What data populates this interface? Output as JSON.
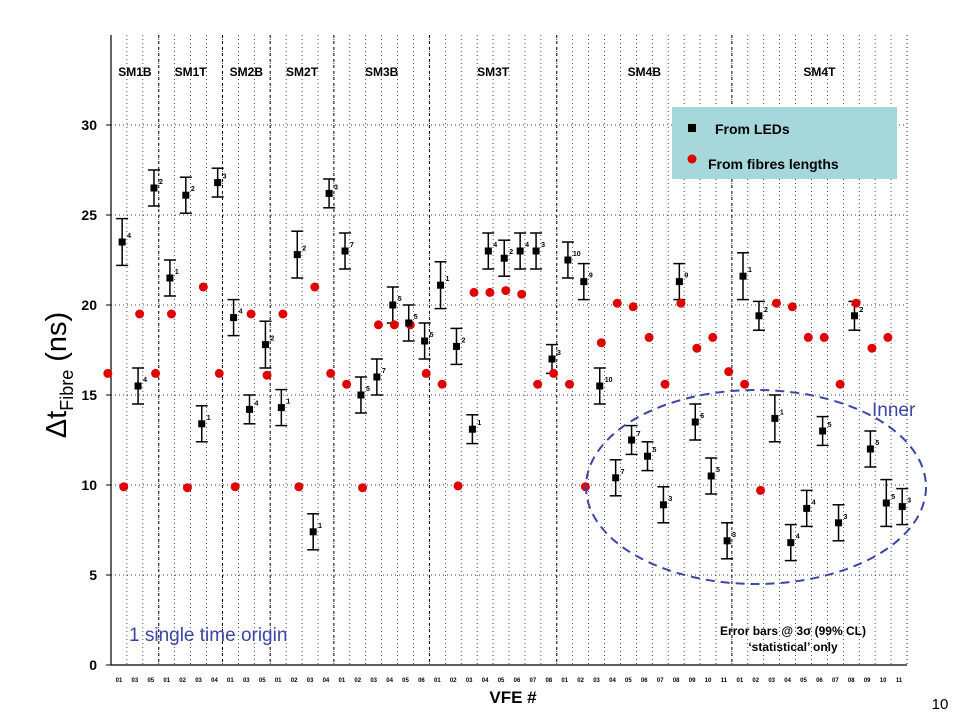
{
  "chart_data": {
    "type": "scatter",
    "ylabel": "Δt_Fibre (ns)",
    "ylabel_parts": {
      "delta": "Δ",
      "t": "t",
      "sub": "Fibre",
      "unit": "(ns)"
    },
    "xlabel": "VFE #",
    "ylim": [
      0,
      35
    ],
    "y_ticks": [
      0,
      5,
      10,
      15,
      20,
      25,
      30
    ],
    "grid": true,
    "page_number": "10",
    "supermodules": [
      "SM1B",
      "SM1T",
      "SM2B",
      "SM2T",
      "SM3B",
      "SM3T",
      "SM4B",
      "SM4T"
    ],
    "x_tick_labels": [
      "01",
      "03",
      "05",
      "01",
      "02",
      "03",
      "04",
      "01",
      "03",
      "05",
      "01",
      "02",
      "03",
      "04",
      "01",
      "02",
      "03",
      "04",
      "05",
      "06",
      "01",
      "02",
      "03",
      "04",
      "05",
      "06",
      "07",
      "08",
      "01",
      "02",
      "03",
      "04",
      "05",
      "06",
      "07",
      "08",
      "09",
      "10",
      "11",
      "01",
      "02",
      "03",
      "04",
      "05",
      "06",
      "07",
      "08",
      "09",
      "10",
      "11"
    ],
    "legend": {
      "position": "top-right",
      "items": [
        {
          "label": "From LEDs",
          "marker": "square",
          "color": "#000000"
        },
        {
          "label": "From fibres lengths",
          "marker": "circle",
          "color": "#e00000"
        }
      ]
    },
    "annotations": {
      "inner_label": "Inner",
      "origin_note": "1 single time origin",
      "error_note_line1": "Error bars @ 3σ (99% CL)",
      "error_note_line2": "‘statistical’ only"
    },
    "series": [
      {
        "name": "From LEDs",
        "marker": "square",
        "color": "#000000",
        "points": [
          {
            "x": 0.2,
            "y": 23.5,
            "err": 1.3,
            "label": "4"
          },
          {
            "x": 1.2,
            "y": 15.5,
            "err": 1.0,
            "label": "4"
          },
          {
            "x": 2.2,
            "y": 26.5,
            "err": 1.0,
            "label": "2"
          },
          {
            "x": 3.2,
            "y": 21.5,
            "err": 1.0,
            "label": "1"
          },
          {
            "x": 4.2,
            "y": 26.1,
            "err": 1.0,
            "label": "2"
          },
          {
            "x": 5.2,
            "y": 13.4,
            "err": 1.0,
            "label": "1"
          },
          {
            "x": 6.2,
            "y": 26.8,
            "err": 0.8,
            "label": "3"
          },
          {
            "x": 7.2,
            "y": 19.3,
            "err": 1.0,
            "label": "4"
          },
          {
            "x": 8.2,
            "y": 14.2,
            "err": 0.8,
            "label": "4"
          },
          {
            "x": 9.2,
            "y": 17.8,
            "err": 1.3,
            "label": "2"
          },
          {
            "x": 10.2,
            "y": 14.3,
            "err": 1.0,
            "label": "1"
          },
          {
            "x": 11.2,
            "y": 22.8,
            "err": 1.3,
            "label": "2"
          },
          {
            "x": 12.2,
            "y": 7.4,
            "err": 1.0,
            "label": "1"
          },
          {
            "x": 13.2,
            "y": 26.2,
            "err": 0.8,
            "label": "3"
          },
          {
            "x": 14.2,
            "y": 23.0,
            "err": 1.0,
            "label": "7"
          },
          {
            "x": 15.2,
            "y": 15.0,
            "err": 1.0,
            "label": "5"
          },
          {
            "x": 16.2,
            "y": 16.0,
            "err": 1.0,
            "label": "7"
          },
          {
            "x": 17.2,
            "y": 20.0,
            "err": 1.0,
            "label": "5"
          },
          {
            "x": 18.2,
            "y": 19.0,
            "err": 1.0,
            "label": "5"
          },
          {
            "x": 19.2,
            "y": 18.0,
            "err": 1.0,
            "label": "5"
          },
          {
            "x": 20.2,
            "y": 21.1,
            "err": 1.3,
            "label": "1"
          },
          {
            "x": 21.2,
            "y": 17.7,
            "err": 1.0,
            "label": "2"
          },
          {
            "x": 22.2,
            "y": 13.1,
            "err": 0.8,
            "label": "1"
          },
          {
            "x": 23.2,
            "y": 23.0,
            "err": 1.0,
            "label": "4"
          },
          {
            "x": 24.2,
            "y": 22.6,
            "err": 1.0,
            "label": "2"
          },
          {
            "x": 25.2,
            "y": 23.0,
            "err": 1.0,
            "label": "4"
          },
          {
            "x": 26.2,
            "y": 23.0,
            "err": 1.0,
            "label": "3"
          },
          {
            "x": 27.2,
            "y": 17.0,
            "err": 0.8,
            "label": "3"
          },
          {
            "x": 28.2,
            "y": 22.5,
            "err": 1.0,
            "label": "10"
          },
          {
            "x": 29.2,
            "y": 21.3,
            "err": 1.0,
            "label": "9"
          },
          {
            "x": 30.2,
            "y": 15.5,
            "err": 1.0,
            "label": "10"
          },
          {
            "x": 31.2,
            "y": 10.4,
            "err": 1.0,
            "label": "7"
          },
          {
            "x": 32.2,
            "y": 12.5,
            "err": 0.8,
            "label": "7"
          },
          {
            "x": 33.2,
            "y": 11.6,
            "err": 0.8,
            "label": "5"
          },
          {
            "x": 34.2,
            "y": 8.9,
            "err": 1.0,
            "label": "3"
          },
          {
            "x": 35.2,
            "y": 21.3,
            "err": 1.0,
            "label": "9"
          },
          {
            "x": 36.2,
            "y": 13.5,
            "err": 1.0,
            "label": "6"
          },
          {
            "x": 37.2,
            "y": 10.5,
            "err": 1.0,
            "label": "5"
          },
          {
            "x": 38.2,
            "y": 6.9,
            "err": 1.0,
            "label": "3"
          },
          {
            "x": 39.2,
            "y": 21.6,
            "err": 1.3,
            "label": "1"
          },
          {
            "x": 40.2,
            "y": 19.4,
            "err": 0.8,
            "label": "2"
          },
          {
            "x": 41.2,
            "y": 13.7,
            "err": 1.3,
            "label": "1"
          },
          {
            "x": 42.2,
            "y": 6.8,
            "err": 1.0,
            "label": "4"
          },
          {
            "x": 43.2,
            "y": 8.7,
            "err": 1.0,
            "label": "4"
          },
          {
            "x": 44.2,
            "y": 13.0,
            "err": 0.8,
            "label": "5"
          },
          {
            "x": 45.2,
            "y": 7.9,
            "err": 1.0,
            "label": "3"
          },
          {
            "x": 46.2,
            "y": 19.4,
            "err": 0.8,
            "label": "2"
          },
          {
            "x": 47.2,
            "y": 12.0,
            "err": 1.0,
            "label": "5"
          },
          {
            "x": 48.2,
            "y": 9.0,
            "err": 1.3,
            "label": "5"
          },
          {
            "x": 49.2,
            "y": 8.8,
            "err": 1.0,
            "label": "3"
          }
        ]
      },
      {
        "name": "From fibres lengths",
        "marker": "circle",
        "color": "#e00000",
        "points": [
          {
            "x": -0.7,
            "y": 16.2
          },
          {
            "x": 0.3,
            "y": 9.9
          },
          {
            "x": 1.3,
            "y": 19.5
          },
          {
            "x": 2.3,
            "y": 16.2
          },
          {
            "x": 3.3,
            "y": 19.5
          },
          {
            "x": 4.3,
            "y": 9.85
          },
          {
            "x": 5.3,
            "y": 21.0
          },
          {
            "x": 6.3,
            "y": 16.2
          },
          {
            "x": 7.3,
            "y": 9.9
          },
          {
            "x": 8.3,
            "y": 19.5
          },
          {
            "x": 9.3,
            "y": 16.1
          },
          {
            "x": 10.3,
            "y": 19.5
          },
          {
            "x": 11.3,
            "y": 9.9
          },
          {
            "x": 12.3,
            "y": 21.0
          },
          {
            "x": 13.3,
            "y": 16.2
          },
          {
            "x": 14.3,
            "y": 15.6
          },
          {
            "x": 15.3,
            "y": 9.85
          },
          {
            "x": 16.3,
            "y": 18.9
          },
          {
            "x": 17.3,
            "y": 18.9
          },
          {
            "x": 18.3,
            "y": 18.9
          },
          {
            "x": 19.3,
            "y": 16.2
          },
          {
            "x": 20.3,
            "y": 15.6
          },
          {
            "x": 21.3,
            "y": 9.95
          },
          {
            "x": 22.3,
            "y": 20.7
          },
          {
            "x": 23.3,
            "y": 20.7
          },
          {
            "x": 24.3,
            "y": 20.8
          },
          {
            "x": 25.3,
            "y": 20.6
          },
          {
            "x": 26.3,
            "y": 15.6
          },
          {
            "x": 27.3,
            "y": 16.2
          },
          {
            "x": 28.3,
            "y": 15.6
          },
          {
            "x": 29.3,
            "y": 9.9
          },
          {
            "x": 30.3,
            "y": 17.9
          },
          {
            "x": 31.3,
            "y": 20.1
          },
          {
            "x": 32.3,
            "y": 19.9
          },
          {
            "x": 33.3,
            "y": 18.2
          },
          {
            "x": 34.3,
            "y": 15.6
          },
          {
            "x": 35.3,
            "y": 20.1
          },
          {
            "x": 36.3,
            "y": 17.6
          },
          {
            "x": 37.3,
            "y": 18.2
          },
          {
            "x": 38.3,
            "y": 16.3
          },
          {
            "x": 39.3,
            "y": 15.6
          },
          {
            "x": 40.3,
            "y": 9.7
          },
          {
            "x": 41.3,
            "y": 20.1
          },
          {
            "x": 42.3,
            "y": 19.9
          },
          {
            "x": 43.3,
            "y": 18.2
          },
          {
            "x": 44.3,
            "y": 18.2
          },
          {
            "x": 45.3,
            "y": 15.6
          },
          {
            "x": 46.3,
            "y": 20.1
          },
          {
            "x": 47.3,
            "y": 17.6
          },
          {
            "x": 48.3,
            "y": 18.2
          }
        ]
      }
    ]
  }
}
